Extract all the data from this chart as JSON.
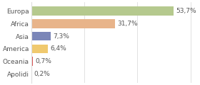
{
  "categories": [
    "Europa",
    "Africa",
    "Asia",
    "America",
    "Oceania",
    "Apolidi"
  ],
  "values": [
    53.7,
    31.7,
    7.3,
    6.4,
    0.7,
    0.2
  ],
  "labels": [
    "53,7%",
    "31,7%",
    "7,3%",
    "6,4%",
    "0,7%",
    "0,2%"
  ],
  "colors": [
    "#b5c98e",
    "#e8b48a",
    "#7b86b8",
    "#f0c96e",
    "#d94f4f",
    "#cccccc"
  ],
  "xlim": [
    0,
    62
  ],
  "bar_height": 0.72,
  "label_fontsize": 6.5,
  "tick_fontsize": 6.5,
  "background_color": "#ffffff",
  "text_color": "#555555",
  "grid_color": "#dddddd"
}
